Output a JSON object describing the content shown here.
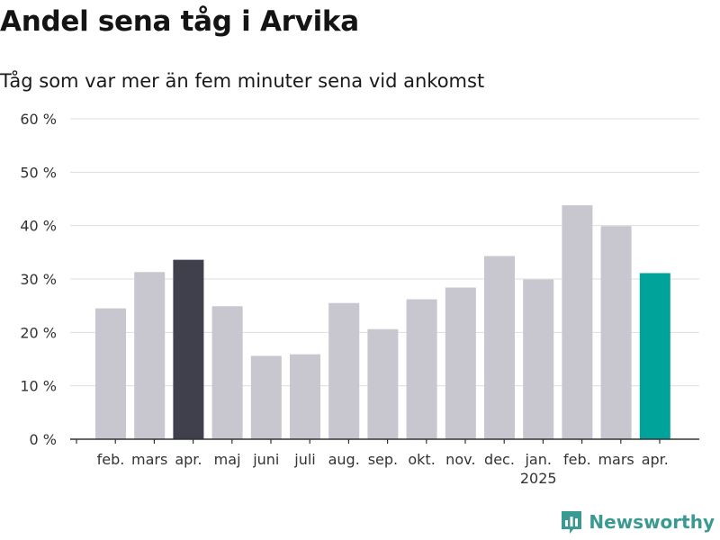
{
  "header": {
    "title": "Andel sena tåg i Arvika",
    "subtitle": "Tåg som var mer än fem minuter sena vid ankomst"
  },
  "brand": {
    "name": "Newsworthy",
    "icon": "newsworthy-logo-icon",
    "color": "#3a9a92"
  },
  "colors": {
    "bar_default": "#c8c6cf",
    "bar_highlight_dark": "#403f4c",
    "bar_highlight_accent": "#00a39a",
    "gridline": "#dddddd",
    "axis": "#333333"
  },
  "chart_data": {
    "type": "bar",
    "title": "Andel sena tåg i Arvika",
    "subtitle": "Tåg som var mer än fem minuter sena vid ankomst",
    "xlabel": "",
    "ylabel": "",
    "ylim": [
      0,
      60
    ],
    "yticks": [
      0,
      10,
      20,
      30,
      40,
      50,
      60
    ],
    "ytick_labels": [
      "0 %",
      "10 %",
      "20 %",
      "30 %",
      "40 %",
      "50 %",
      "60 %"
    ],
    "grid": true,
    "categories": [
      "feb.",
      "mars",
      "apr.",
      "maj",
      "juni",
      "juli",
      "aug.",
      "sep.",
      "okt.",
      "nov.",
      "dec.",
      "jan.",
      "feb.",
      "mars",
      "apr."
    ],
    "year_labels": [
      {
        "index": 11,
        "label": "2025"
      }
    ],
    "values": [
      24.5,
      31.3,
      33.6,
      24.9,
      15.6,
      15.9,
      25.5,
      20.6,
      26.2,
      28.4,
      34.3,
      29.9,
      43.8,
      39.9,
      31.1
    ],
    "highlights": [
      {
        "index": 2,
        "color": "#403f4c"
      },
      {
        "index": 14,
        "color": "#00a39a"
      }
    ]
  }
}
